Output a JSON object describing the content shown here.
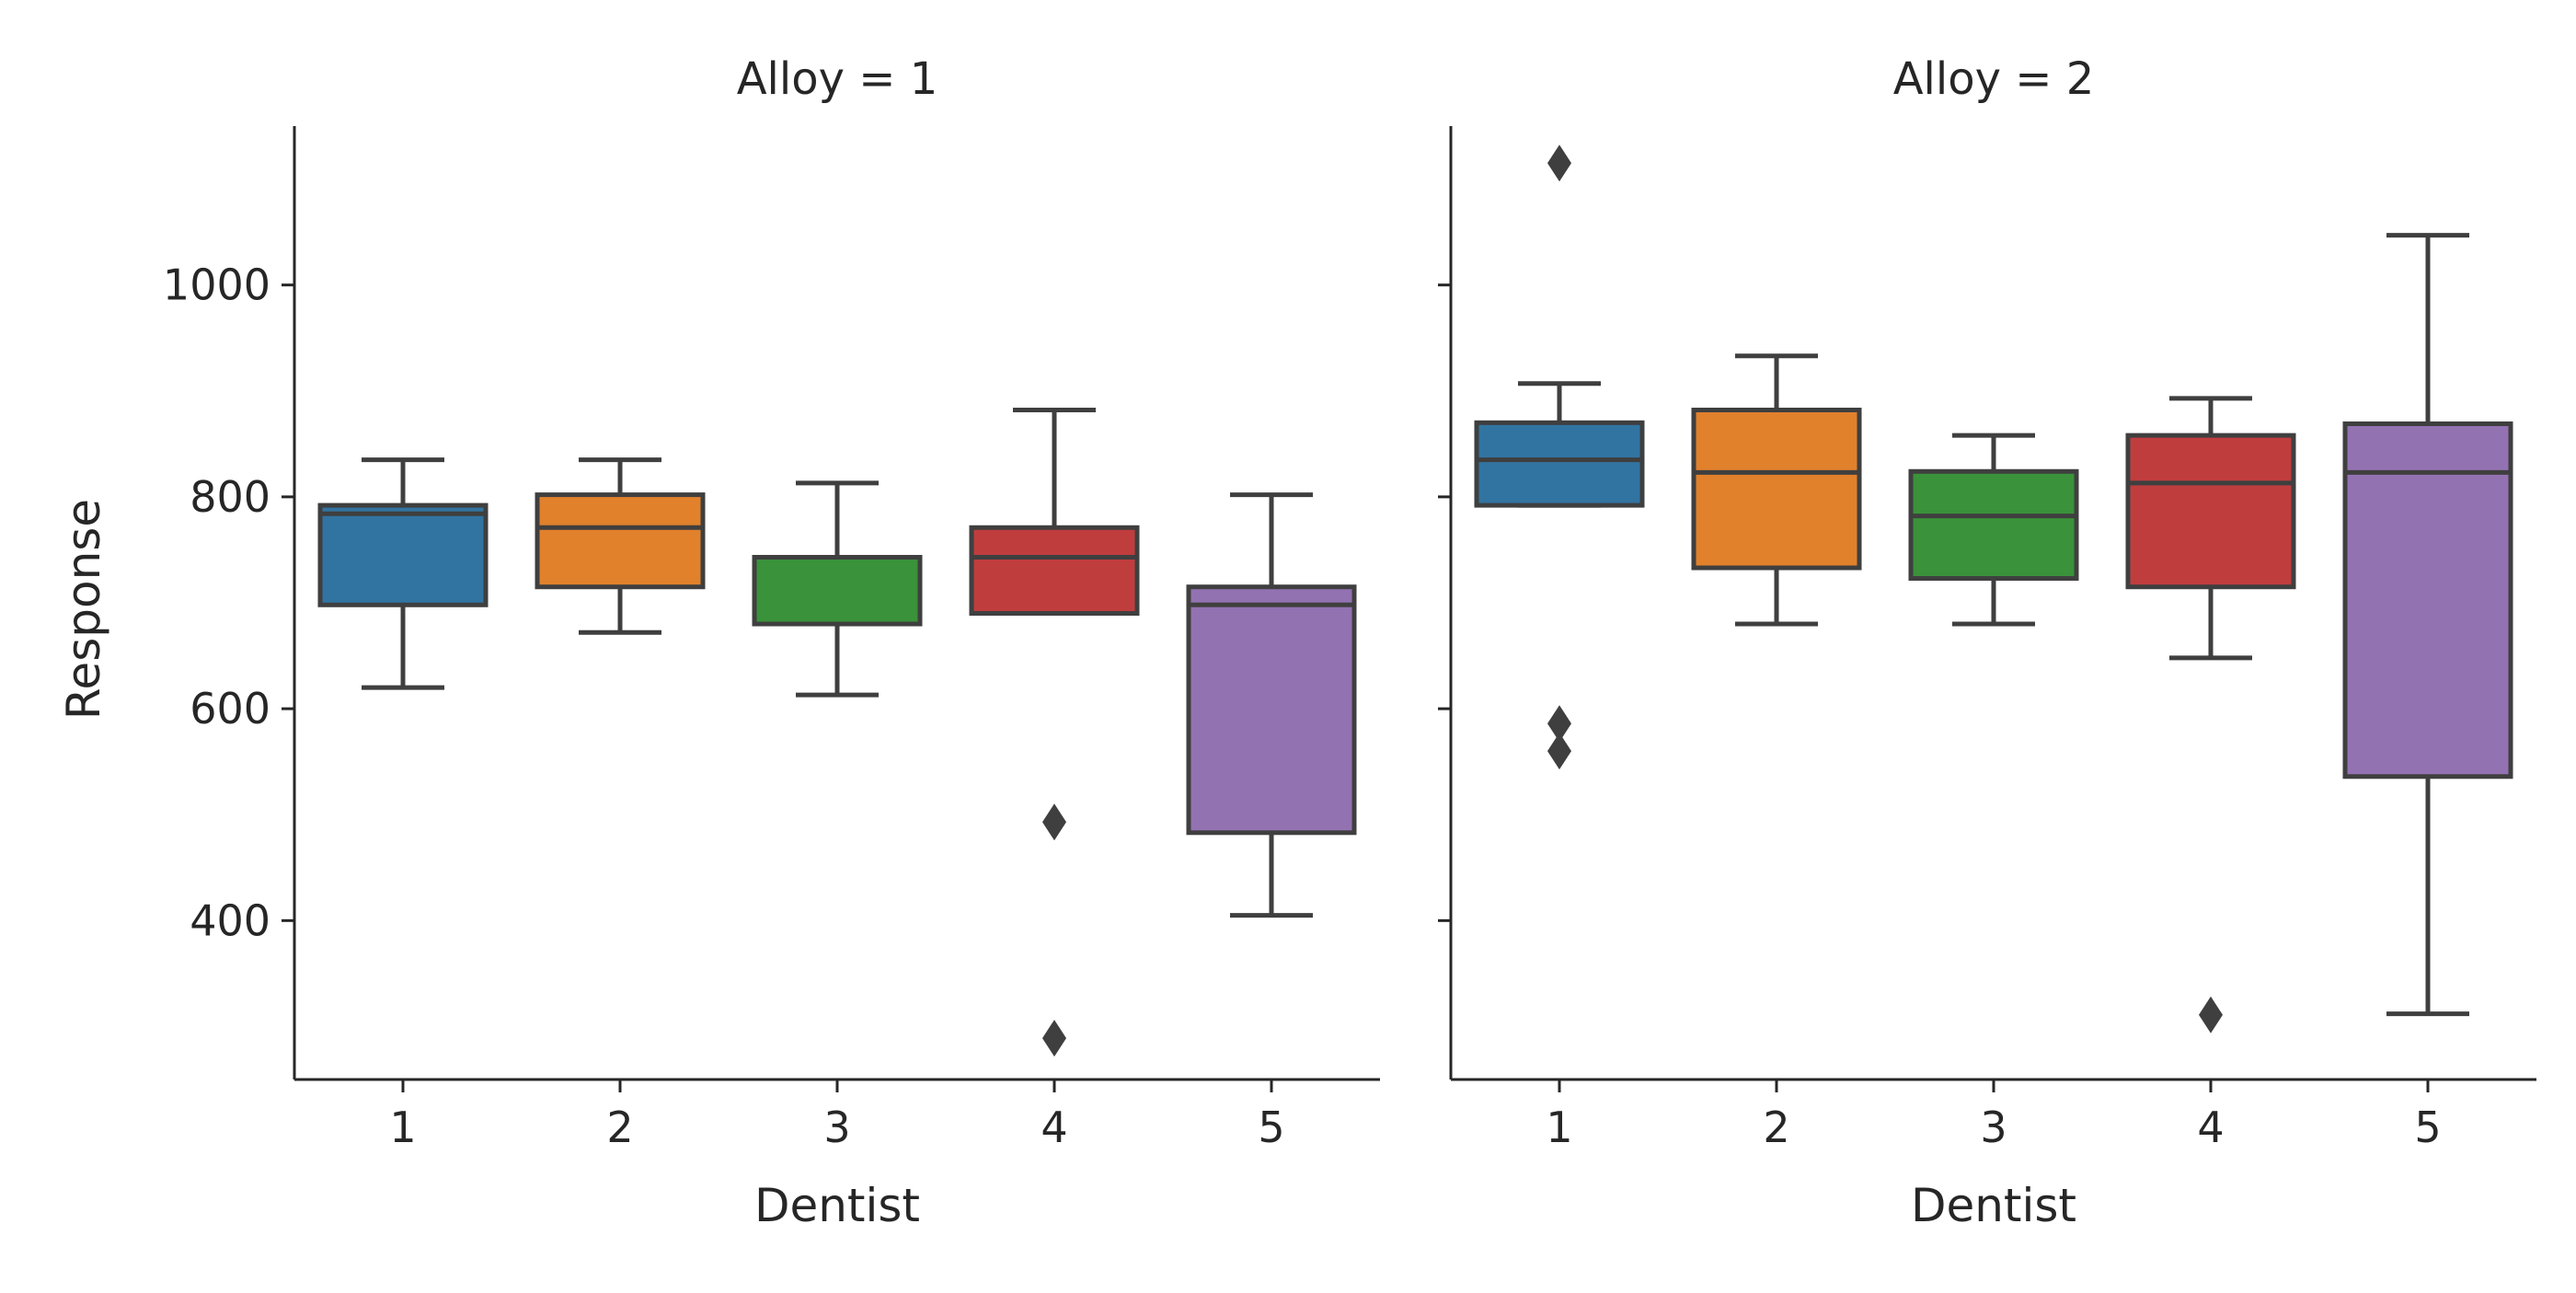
{
  "chart_data": {
    "type": "box",
    "xlabel": "Dentist",
    "ylabel": "Response",
    "ylim": [
      250,
      1150
    ],
    "yticks": [
      400,
      600,
      800,
      1000
    ],
    "categories": [
      "1",
      "2",
      "3",
      "4",
      "5"
    ],
    "box_colors": [
      "#3274a1",
      "#e1812c",
      "#3a923a",
      "#c03d3e",
      "#9372b2"
    ],
    "line_color": "#3f3f3f",
    "grid": false,
    "facets": [
      {
        "title": "Alloy = 1",
        "boxes": [
          {
            "category": "1",
            "whisker_low": 620,
            "q1": 698,
            "median": 784,
            "q3": 792,
            "whisker_high": 835,
            "outliers": []
          },
          {
            "category": "2",
            "whisker_low": 672,
            "q1": 715,
            "median": 771,
            "q3": 802,
            "whisker_high": 835,
            "outliers": []
          },
          {
            "category": "3",
            "whisker_low": 613,
            "q1": 680,
            "median": 743,
            "q3": 743,
            "whisker_high": 813,
            "outliers": []
          },
          {
            "category": "4",
            "whisker_low": 690,
            "q1": 690,
            "median": 743,
            "q3": 771,
            "whisker_high": 882,
            "outliers": [
              493,
              289
            ]
          },
          {
            "category": "5",
            "whisker_low": 405,
            "q1": 483,
            "median": 698,
            "q3": 715,
            "whisker_high": 802,
            "outliers": []
          }
        ]
      },
      {
        "title": "Alloy = 2",
        "boxes": [
          {
            "category": "1",
            "whisker_low": 792,
            "q1": 792,
            "median": 835,
            "q3": 870,
            "whisker_high": 907,
            "outliers": [
              1115,
              586,
              560
            ]
          },
          {
            "category": "2",
            "whisker_low": 680,
            "q1": 733,
            "median": 823,
            "q3": 882,
            "whisker_high": 933,
            "outliers": []
          },
          {
            "category": "3",
            "whisker_low": 680,
            "q1": 723,
            "median": 782,
            "q3": 824,
            "whisker_high": 858,
            "outliers": []
          },
          {
            "category": "4",
            "whisker_low": 648,
            "q1": 715,
            "median": 813,
            "q3": 858,
            "whisker_high": 893,
            "outliers": [
              311
            ]
          },
          {
            "category": "5",
            "whisker_low": 312,
            "q1": 536,
            "median": 823,
            "q3": 869,
            "whisker_high": 1047,
            "outliers": []
          }
        ]
      }
    ]
  }
}
